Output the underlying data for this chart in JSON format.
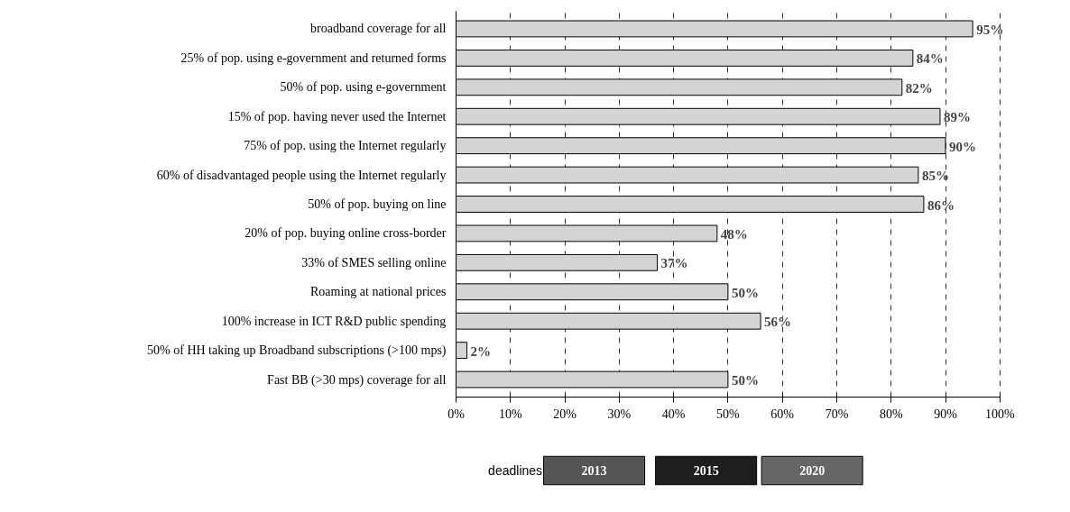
{
  "chart_data": {
    "type": "bar",
    "orientation": "horizontal",
    "categories": [
      "broadband coverage for all",
      "25% of pop. using e-government and returned forms",
      "50% of pop. using e-government",
      "15% of pop. having never used the Internet",
      "75% of pop. using the Internet regularly",
      "60% of disadvantaged people using the Internet regularly",
      "50% of pop. buying on line",
      "20% of pop. buying online cross-border",
      "33% of SMES selling online",
      "Roaming at national prices",
      "100% increase in ICT R&D public spending",
      "50% of HH taking up Broadband subscriptions (>100 mps)",
      "Fast BB (>30 mps) coverage for all"
    ],
    "values": [
      95,
      84,
      82,
      89,
      90,
      85,
      86,
      48,
      37,
      50,
      56,
      2,
      50
    ],
    "value_labels": [
      "95%",
      "84%",
      "82%",
      "89%",
      "90%",
      "85%",
      "86%",
      "48%",
      "37%",
      "50%",
      "56%",
      "2%",
      "50%"
    ],
    "color": "#d4d4d4",
    "xlim": [
      0,
      100
    ],
    "xticks": [
      {
        "value": 0,
        "label": "0%"
      },
      {
        "value": 10,
        "label": "10%"
      },
      {
        "value": 20,
        "label": "20%"
      },
      {
        "value": 30,
        "label": "30%"
      },
      {
        "value": 40,
        "label": "40%"
      },
      {
        "value": 50,
        "label": "50%"
      },
      {
        "value": 60,
        "label": "60%"
      },
      {
        "value": 70,
        "label": "70%"
      },
      {
        "value": 80,
        "label": "80%"
      },
      {
        "value": 90,
        "label": "90%"
      },
      {
        "value": 100,
        "label": "100%"
      }
    ],
    "grid": "x",
    "annotations": [
      "deadlines",
      "2013",
      "2015",
      "2020"
    ]
  }
}
